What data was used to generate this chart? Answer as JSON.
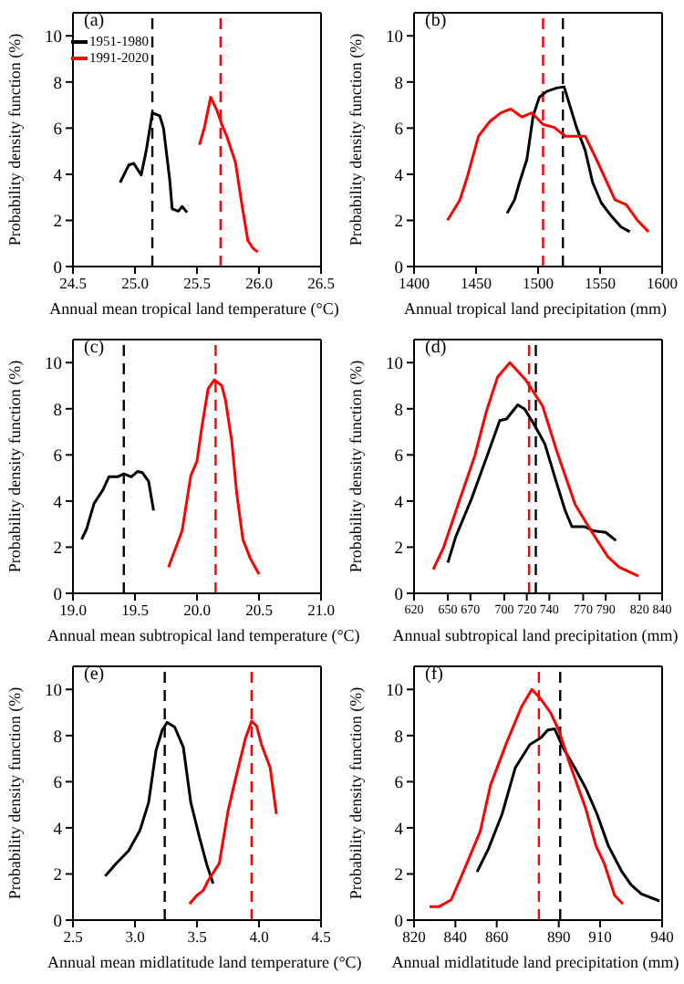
{
  "chart_data": [
    {
      "type": "line",
      "annotations": [
        "(a)"
      ],
      "xlabel": "Annual mean tropical land temperature (°C)",
      "ylabel": "Probability density function (%)",
      "xlim": [
        24.5,
        26.5
      ],
      "xticks": [
        {
          "value": 24.5,
          "label": "24.5"
        },
        {
          "value": 25.0,
          "label": "25.0"
        },
        {
          "value": 25.5,
          "label": "25.5"
        },
        {
          "value": 26.0,
          "label": "26.0"
        },
        {
          "value": 26.5,
          "label": "26.5"
        }
      ],
      "ylim": [
        0,
        11
      ],
      "yticks": [
        0,
        2,
        4,
        6,
        8,
        10
      ],
      "legend": "top left",
      "marker": "none",
      "series": [
        {
          "name": "1951-1980",
          "color": "#000000",
          "x": [
            24.88,
            24.95,
            24.99,
            25.05,
            25.09,
            25.14,
            25.2,
            25.23,
            25.28,
            25.3,
            25.35,
            25.38,
            25.42
          ],
          "values": [
            3.64,
            4.4,
            4.47,
            3.97,
            5.0,
            6.66,
            6.53,
            6.0,
            3.77,
            2.5,
            2.4,
            2.6,
            2.35
          ]
        },
        {
          "name": "1991-2020",
          "color": "#ff0000",
          "x": [
            25.52,
            25.56,
            25.61,
            25.66,
            25.7,
            25.74,
            25.81,
            25.86,
            25.91,
            25.95,
            25.99
          ],
          "values": [
            5.28,
            6.03,
            7.34,
            6.78,
            6.16,
            5.65,
            4.52,
            2.76,
            1.13,
            0.8,
            0.63
          ]
        }
      ],
      "ref_lines": [
        {
          "axis": "x",
          "value": 25.14,
          "color": "#000000",
          "line_style": "dashed"
        },
        {
          "axis": "x",
          "value": 25.69,
          "color": "#ff0000",
          "line_style": "dashed"
        }
      ]
    },
    {
      "type": "line",
      "annotations": [
        "(b)"
      ],
      "xlabel": "Annual tropical land precipitation (mm)",
      "ylabel": "Probability density function (%)",
      "xlim": [
        1400,
        1600
      ],
      "xticks": [
        1400,
        1450,
        1500,
        1550,
        1600
      ],
      "ylim": [
        0,
        11
      ],
      "yticks": [
        0,
        2,
        4,
        6,
        8,
        10
      ],
      "legend": false,
      "marker": "none",
      "series": [
        {
          "color": "#000000",
          "x": [
            1475,
            1481,
            1485,
            1491,
            1496,
            1501,
            1507,
            1515,
            1521,
            1526,
            1531,
            1538,
            1544,
            1551,
            1558,
            1567,
            1574
          ],
          "values": [
            2.31,
            2.89,
            3.64,
            4.65,
            6.53,
            7.34,
            7.59,
            7.74,
            7.79,
            6.91,
            6.03,
            5.03,
            3.64,
            2.76,
            2.26,
            1.71,
            1.51
          ]
        },
        {
          "color": "#ff0000",
          "x": [
            1427,
            1437,
            1443,
            1452,
            1461,
            1470,
            1478,
            1487,
            1495,
            1504,
            1513,
            1522,
            1538,
            1547,
            1562,
            1571,
            1580,
            1589
          ],
          "values": [
            2.01,
            2.89,
            3.9,
            5.65,
            6.28,
            6.66,
            6.83,
            6.48,
            6.66,
            6.16,
            6.03,
            5.65,
            5.65,
            4.65,
            2.89,
            2.69,
            2.01,
            1.51
          ]
        }
      ],
      "ref_lines": [
        {
          "axis": "x",
          "value": 1520,
          "color": "#000000",
          "line_style": "dashed"
        },
        {
          "axis": "x",
          "value": 1504,
          "color": "#ff0000",
          "line_style": "dashed"
        }
      ]
    },
    {
      "type": "line",
      "annotations": [
        "(c)"
      ],
      "xlabel": "Annual mean subtropical land temperature (°C)",
      "ylabel": "Probability density function (%)",
      "xlim": [
        19.0,
        21.0
      ],
      "xticks": [
        {
          "value": 19.0,
          "label": "19.0"
        },
        {
          "value": 19.5,
          "label": "19.5"
        },
        {
          "value": 20.0,
          "label": "20.0"
        },
        {
          "value": 20.5,
          "label": "20.5"
        },
        {
          "value": 21.0,
          "label": "21.0"
        }
      ],
      "ylim": [
        0,
        11
      ],
      "yticks": [
        0,
        2,
        4,
        6,
        8,
        10
      ],
      "legend": false,
      "marker": "none",
      "series": [
        {
          "color": "#000000",
          "x": [
            19.07,
            19.11,
            19.17,
            19.24,
            19.29,
            19.36,
            19.41,
            19.47,
            19.52,
            19.56,
            19.61,
            19.65
          ],
          "values": [
            2.34,
            2.79,
            3.89,
            4.47,
            5.05,
            5.05,
            5.18,
            5.05,
            5.28,
            5.23,
            4.85,
            3.59
          ]
        },
        {
          "color": "#ff0000",
          "x": [
            19.77,
            19.88,
            19.95,
            20.0,
            20.04,
            20.09,
            20.14,
            20.2,
            20.23,
            20.28,
            20.32,
            20.37,
            20.43,
            20.5
          ],
          "values": [
            1.13,
            2.71,
            5.1,
            5.73,
            7.24,
            8.87,
            9.25,
            9.0,
            8.37,
            6.61,
            4.35,
            2.34,
            1.51,
            0.83
          ]
        }
      ],
      "ref_lines": [
        {
          "axis": "x",
          "value": 19.41,
          "color": "#000000",
          "line_style": "dashed"
        },
        {
          "axis": "x",
          "value": 20.15,
          "color": "#ff0000",
          "line_style": "dashed"
        }
      ]
    },
    {
      "type": "line",
      "annotations": [
        "(d)"
      ],
      "xlabel": "Annual subtropical land precipitation (mm)",
      "ylabel": "Probability density function (%)",
      "xlim": [
        620,
        840
      ],
      "xticks": [
        620,
        650,
        670,
        700,
        720,
        740,
        770,
        790,
        820,
        840
      ],
      "ylim": [
        0,
        11
      ],
      "yticks": [
        0,
        2,
        4,
        6,
        8,
        10
      ],
      "legend": false,
      "marker": "none",
      "series": [
        {
          "color": "#000000",
          "x": [
            650,
            657,
            671,
            684,
            696,
            702,
            712,
            718,
            726,
            736,
            746,
            754,
            760,
            771,
            779,
            790,
            799
          ],
          "values": [
            1.33,
            2.46,
            4.1,
            5.85,
            7.49,
            7.56,
            8.17,
            7.99,
            7.36,
            6.48,
            4.85,
            3.59,
            2.89,
            2.89,
            2.71,
            2.64,
            2.29
          ]
        },
        {
          "color": "#ff0000",
          "x": [
            637,
            646,
            659,
            674,
            684,
            694,
            705,
            719,
            734,
            747,
            763,
            777,
            792,
            802,
            819
          ],
          "values": [
            1.03,
            1.96,
            3.84,
            5.98,
            7.86,
            9.37,
            10.0,
            9.25,
            8.12,
            6.1,
            3.84,
            2.71,
            1.58,
            1.13,
            0.75
          ]
        }
      ],
      "ref_lines": [
        {
          "axis": "x",
          "value": 728,
          "color": "#000000",
          "line_style": "dashed"
        },
        {
          "axis": "x",
          "value": 722,
          "color": "#ff0000",
          "line_style": "dashed"
        }
      ]
    },
    {
      "type": "line",
      "annotations": [
        "(e)"
      ],
      "xlabel": "Annual mean midlatitude land temperature (°C)",
      "ylabel": "Probability density function (%)",
      "xlim": [
        2.5,
        4.5
      ],
      "xticks": [
        2.5,
        {
          "value": 3.0,
          "label": "3.0"
        },
        3.5,
        {
          "value": 4.0,
          "label": "4.0"
        },
        4.5
      ],
      "ylim": [
        0,
        11
      ],
      "yticks": [
        0,
        2,
        4,
        6,
        8,
        10
      ],
      "legend": false,
      "marker": "none",
      "series": [
        {
          "color": "#000000",
          "x": [
            2.76,
            2.85,
            2.95,
            3.04,
            3.11,
            3.17,
            3.22,
            3.26,
            3.32,
            3.39,
            3.45,
            3.52,
            3.58,
            3.63
          ],
          "values": [
            1.91,
            2.46,
            3.02,
            3.89,
            5.1,
            7.36,
            8.24,
            8.57,
            8.37,
            7.49,
            5.1,
            3.59,
            2.39,
            1.58
          ]
        },
        {
          "color": "#ff0000",
          "x": [
            3.44,
            3.5,
            3.55,
            3.59,
            3.68,
            3.75,
            3.81,
            3.89,
            3.94,
            3.98,
            4.02,
            4.09,
            4.14
          ],
          "values": [
            0.7,
            1.08,
            1.28,
            1.71,
            2.46,
            4.72,
            6.11,
            7.86,
            8.62,
            8.42,
            7.61,
            6.61,
            4.6
          ]
        }
      ],
      "ref_lines": [
        {
          "axis": "x",
          "value": 3.24,
          "color": "#000000",
          "line_style": "dashed"
        },
        {
          "axis": "x",
          "value": 3.94,
          "color": "#ff0000",
          "line_style": "dashed"
        }
      ]
    },
    {
      "type": "line",
      "annotations": [
        "(f)"
      ],
      "xlabel": "Annual midlatitude land precipitation (mm)",
      "ylabel": "Probability density function (%)",
      "xlim": [
        820,
        940
      ],
      "xticks": [
        820,
        840,
        860,
        890,
        910,
        940
      ],
      "ylim": [
        0,
        11
      ],
      "yticks": [
        0,
        2,
        4,
        6,
        8,
        10
      ],
      "legend": false,
      "marker": "none",
      "series": [
        {
          "color": "#000000",
          "x": [
            850.5,
            856,
            862.6,
            869,
            876,
            881.5,
            884.7,
            888,
            892,
            897.7,
            903,
            908.5,
            914,
            920.6,
            925,
            930,
            938.7
          ],
          "values": [
            2.09,
            3.09,
            4.6,
            6.61,
            7.61,
            7.91,
            8.24,
            8.29,
            7.49,
            6.61,
            5.73,
            4.6,
            3.22,
            2.09,
            1.53,
            1.13,
            0.83
          ]
        },
        {
          "color": "#ff0000",
          "x": [
            827.5,
            832,
            838,
            845,
            852,
            857,
            865,
            872,
            877,
            881,
            886,
            890,
            895,
            903,
            908,
            912,
            917,
            921
          ],
          "values": [
            0.58,
            0.58,
            0.88,
            2.34,
            3.84,
            5.85,
            7.74,
            9.25,
            10.0,
            9.62,
            9.0,
            8.24,
            6.86,
            4.85,
            3.22,
            2.46,
            1.08,
            0.7
          ]
        }
      ],
      "ref_lines": [
        {
          "axis": "x",
          "value": 890.7,
          "color": "#000000",
          "line_style": "dashed"
        },
        {
          "axis": "x",
          "value": 880.4,
          "color": "#ff0000",
          "line_style": "dashed"
        }
      ]
    }
  ]
}
